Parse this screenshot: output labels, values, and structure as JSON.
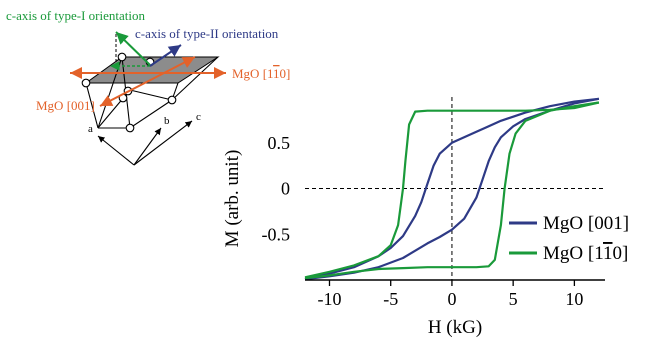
{
  "colors": {
    "green": "#1a9a3a",
    "navy": "#2e3a86",
    "orange": "#e3622a",
    "plane": "#8c8c8c",
    "black": "#000000"
  },
  "diagram": {
    "c_axis_type1": "c-axis of type-I orientation",
    "c_axis_type2": "c-axis of type-II orientation",
    "mgo_1_10_prefix": "MgO [1",
    "mgo_1_10_bar": "1",
    "mgo_1_10_suffix": "0]",
    "mgo_001": "MgO [001]",
    "axis_a": "a",
    "axis_b": "b",
    "axis_c": "c"
  },
  "chart_data": {
    "type": "line",
    "xlabel": "H (kG)",
    "ylabel": "M (arb. unit)",
    "xlim": [
      -12,
      12.5
    ],
    "ylim": [
      -1.0,
      1.0
    ],
    "xticks": [
      -10,
      -5,
      0,
      5,
      10
    ],
    "xtick_labels": [
      "-10",
      "-5",
      "0",
      "5",
      "10"
    ],
    "yticks": [
      0.5,
      0,
      -0.5
    ],
    "ytick_labels": [
      "0.5",
      "0",
      "-0.5"
    ],
    "zero_lines": true,
    "legend_position": "bottom-right",
    "legend_bar_digit": "1",
    "series": [
      {
        "name": "MgO [001]",
        "color": "#2e3a86",
        "branches": [
          [
            [
              -12.0,
              -0.99
            ],
            [
              -10.0,
              -0.96
            ],
            [
              -8.0,
              -0.92
            ],
            [
              -6.0,
              -0.86
            ],
            [
              -4.0,
              -0.76
            ],
            [
              -2.0,
              -0.6
            ],
            [
              -1.0,
              -0.53
            ],
            [
              0.0,
              -0.45
            ],
            [
              1.0,
              -0.33
            ],
            [
              2.0,
              -0.1
            ],
            [
              2.5,
              0.1
            ],
            [
              3.0,
              0.3
            ],
            [
              3.5,
              0.45
            ],
            [
              4.0,
              0.56
            ],
            [
              5.0,
              0.68
            ],
            [
              6.0,
              0.76
            ],
            [
              8.0,
              0.85
            ],
            [
              10.0,
              0.93
            ],
            [
              12.0,
              0.98
            ]
          ],
          [
            [
              12.0,
              0.98
            ],
            [
              10.0,
              0.95
            ],
            [
              8.0,
              0.9
            ],
            [
              6.0,
              0.83
            ],
            [
              4.0,
              0.74
            ],
            [
              2.0,
              0.62
            ],
            [
              0.0,
              0.5
            ],
            [
              -1.0,
              0.38
            ],
            [
              -1.5,
              0.25
            ],
            [
              -2.0,
              0.05
            ],
            [
              -2.5,
              -0.15
            ],
            [
              -3.0,
              -0.3
            ],
            [
              -4.0,
              -0.52
            ],
            [
              -5.0,
              -0.65
            ],
            [
              -6.0,
              -0.74
            ],
            [
              -8.0,
              -0.86
            ],
            [
              -10.0,
              -0.93
            ],
            [
              -12.0,
              -0.99
            ]
          ]
        ]
      },
      {
        "name": "MgO [110]",
        "color": "#1a9a3a",
        "branches": [
          [
            [
              -12.0,
              -0.98
            ],
            [
              -10.0,
              -0.95
            ],
            [
              -8.0,
              -0.91
            ],
            [
              -6.0,
              -0.88
            ],
            [
              -4.0,
              -0.87
            ],
            [
              -2.0,
              -0.86
            ],
            [
              0.0,
              -0.86
            ],
            [
              2.0,
              -0.86
            ],
            [
              3.0,
              -0.85
            ],
            [
              3.5,
              -0.78
            ],
            [
              4.0,
              -0.4
            ],
            [
              4.3,
              0.0
            ],
            [
              4.7,
              0.38
            ],
            [
              5.2,
              0.6
            ],
            [
              6.0,
              0.74
            ],
            [
              8.0,
              0.85
            ],
            [
              10.0,
              0.9
            ],
            [
              12.0,
              0.94
            ]
          ],
          [
            [
              12.0,
              0.94
            ],
            [
              10.0,
              0.88
            ],
            [
              8.0,
              0.86
            ],
            [
              6.0,
              0.85
            ],
            [
              4.0,
              0.85
            ],
            [
              2.0,
              0.85
            ],
            [
              0.0,
              0.85
            ],
            [
              -2.0,
              0.85
            ],
            [
              -3.0,
              0.84
            ],
            [
              -3.5,
              0.7
            ],
            [
              -3.8,
              0.3
            ],
            [
              -4.0,
              0.0
            ],
            [
              -4.4,
              -0.4
            ],
            [
              -5.0,
              -0.62
            ],
            [
              -6.0,
              -0.74
            ],
            [
              -8.0,
              -0.84
            ],
            [
              -10.0,
              -0.91
            ],
            [
              -12.0,
              -0.97
            ]
          ]
        ]
      }
    ]
  }
}
